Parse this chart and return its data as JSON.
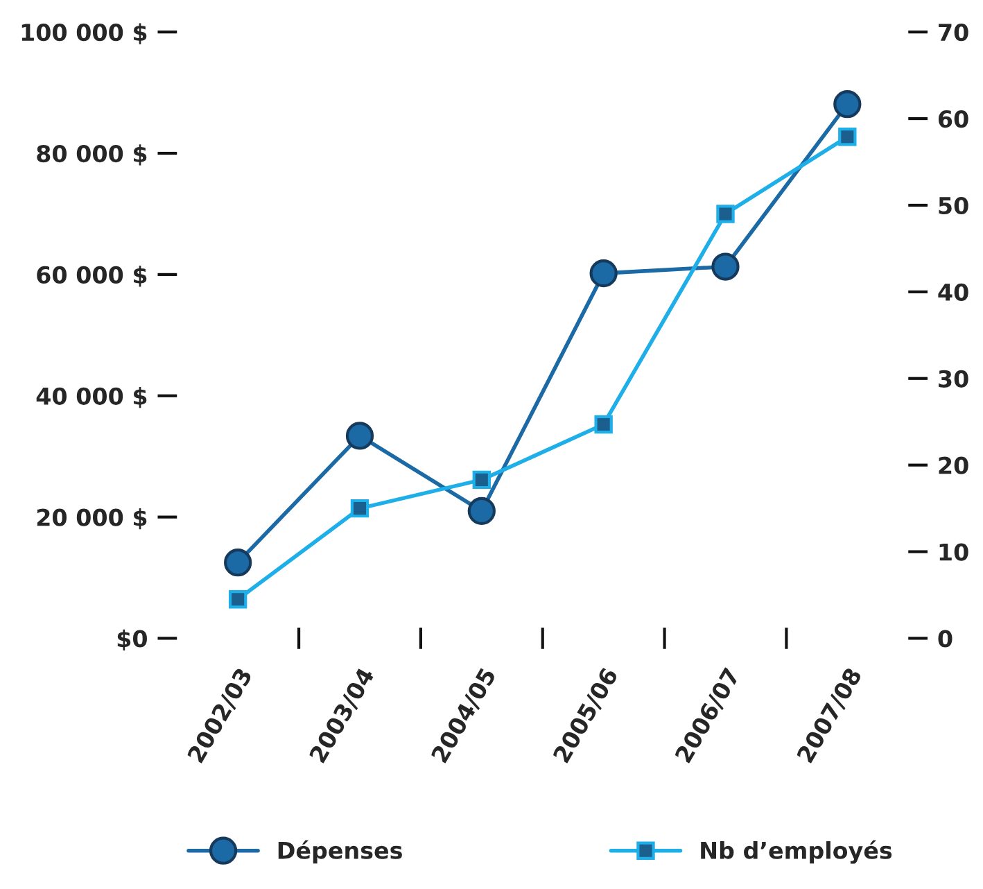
{
  "chart_data": {
    "type": "line",
    "categories": [
      "2002/03",
      "2003/04",
      "2004/05",
      "2005/06",
      "2006/07",
      "2007/08"
    ],
    "series": [
      {
        "name": "Dépenses",
        "color": "#1b6aa5",
        "marker": "circle",
        "values": [
          12500,
          33400,
          21000,
          60200,
          61300,
          88100
        ]
      },
      {
        "name": "Nb d’employés",
        "color": "#1eaee8",
        "marker": "square",
        "axis": "y2",
        "values": [
          4.5,
          15,
          18.3,
          24.7,
          49,
          57.9
        ]
      }
    ],
    "ylim": [
      0,
      100000
    ],
    "yticks": [
      {
        "value": 0,
        "label": "$0"
      },
      {
        "value": 20000,
        "label": "20 000 $"
      },
      {
        "value": 40000,
        "label": "40 000 $"
      },
      {
        "value": 60000,
        "label": "60 000 $"
      },
      {
        "value": 80000,
        "label": "80 000 $"
      },
      {
        "value": 100000,
        "label": "100 000 $"
      }
    ],
    "y2lim": [
      0,
      70
    ],
    "y2ticks": [
      0,
      10,
      20,
      30,
      40,
      50,
      60,
      70
    ],
    "grid": false,
    "legend": "bottom",
    "line_style": "solid"
  }
}
